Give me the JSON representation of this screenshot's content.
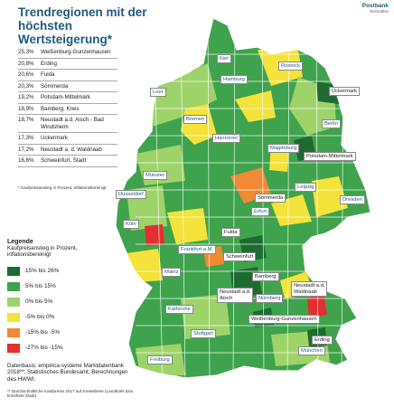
{
  "title": "Trendregionen mit der höchsten Wertsteigerung*",
  "logo": {
    "name": "Postbank",
    "sub": "Wohnatlas"
  },
  "ranking": [
    {
      "pct": "25,3%",
      "name": "Weißenburg-Gunzenhausen"
    },
    {
      "pct": "20,8%",
      "name": "Erding"
    },
    {
      "pct": "20,6%",
      "name": "Fulda"
    },
    {
      "pct": "20,3%",
      "name": "Sömmerda"
    },
    {
      "pct": "19,2%",
      "name": "Potsdam-Mittelmark"
    },
    {
      "pct": "18,9%",
      "name": "Bamberg, Kreis"
    },
    {
      "pct": "18,7%",
      "name": "Neustadt a.d. Aisch - Bad Windsheim"
    },
    {
      "pct": "17,3%",
      "name": "Uckermark"
    },
    {
      "pct": "17,2%",
      "name": "Neustadt a. d. Waldnaab"
    },
    {
      "pct": "16,6%",
      "name": "Schweinfurt, Stadt"
    }
  ],
  "footnote1": "* Kaufpreisanstieg in Prozent, inflationsbereinigt",
  "legend": {
    "title": "Legende",
    "subtitle": "Kaufpreisanstieg in Prozent, inflationsbereinigt",
    "items": [
      {
        "label": "15% bis 26%",
        "color": "#1e6b32"
      },
      {
        "label": "5% bis 15%",
        "color": "#3fa34d"
      },
      {
        "label": "0% bis 5%",
        "color": "#9ed36a"
      },
      {
        "label": "-5% bis 0%",
        "color": "#f3e33a"
      },
      {
        "label": "-15% bis -5%",
        "color": "#f08a35"
      },
      {
        "label": "-27% bis -15%",
        "color": "#e2302f"
      }
    ]
  },
  "source": "Datenbasis: empirica-systeme Marktdatenbank 2018**; Statistisches Bundesamt; Berechnungen des HWWI.",
  "footnote2": "** Durchschnittliche Kaufpreise 2017 auf Kreisebene (Landkreis bzw. kreisfreie Stadt)",
  "cities": [
    {
      "name": "Kiel",
      "trend": false
    },
    {
      "name": "Rostock",
      "trend": false
    },
    {
      "name": "Hamburg",
      "trend": false
    },
    {
      "name": "Leer",
      "trend": false
    },
    {
      "name": "Uckermark",
      "trend": true
    },
    {
      "name": "Bremen",
      "trend": false
    },
    {
      "name": "Berlin",
      "trend": false
    },
    {
      "name": "Hannover",
      "trend": false
    },
    {
      "name": "Magdeburg",
      "trend": false
    },
    {
      "name": "Potsdam-Mittelmark",
      "trend": true
    },
    {
      "name": "Münster",
      "trend": false
    },
    {
      "name": "Leipzig",
      "trend": false
    },
    {
      "name": "Düsseldorf",
      "trend": false
    },
    {
      "name": "Sömmerda",
      "trend": true
    },
    {
      "name": "Dresden",
      "trend": false
    },
    {
      "name": "Erfurt",
      "trend": false
    },
    {
      "name": "Köln",
      "trend": false
    },
    {
      "name": "Fulda",
      "trend": true
    },
    {
      "name": "Frankfurt a.M.",
      "trend": false
    },
    {
      "name": "Schweinfurt",
      "trend": true
    },
    {
      "name": "Mainz",
      "trend": false
    },
    {
      "name": "Bamberg",
      "trend": true
    },
    {
      "name": "Neustadt a.d. Waldnaab",
      "trend": true
    },
    {
      "name": "Neustadt a.d. Aisch",
      "trend": true
    },
    {
      "name": "Nürnberg",
      "trend": false
    },
    {
      "name": "Karlsruhe",
      "trend": false
    },
    {
      "name": "Weißenburg-Gunzenhausen",
      "trend": true
    },
    {
      "name": "Stuttgart",
      "trend": false
    },
    {
      "name": "Erding",
      "trend": true
    },
    {
      "name": "München",
      "trend": false
    },
    {
      "name": "Freiburg",
      "trend": false
    }
  ]
}
